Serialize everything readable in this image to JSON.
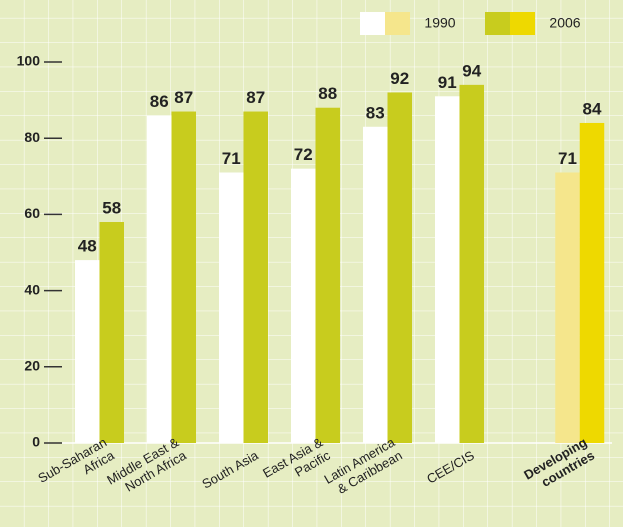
{
  "chart_data": {
    "type": "bar",
    "categories": [
      [
        "Sub-Saharan",
        "Africa"
      ],
      [
        "Middle East &",
        "North Africa"
      ],
      [
        "South Asia"
      ],
      [
        "East Asia &",
        "Pacific"
      ],
      [
        "Latin America",
        "& Caribbean"
      ],
      [
        "CEE/CIS"
      ],
      [
        "Developing",
        "countries"
      ]
    ],
    "highlight_category": 6,
    "series": [
      {
        "name": "1990",
        "color": "#ffffff",
        "highlight_color": "#f5e68c",
        "values": [
          48,
          86,
          71,
          72,
          83,
          91,
          71
        ]
      },
      {
        "name": "2006",
        "color": "#c8cc1e",
        "highlight_color": "#eed900",
        "values": [
          58,
          87,
          87,
          88,
          92,
          94,
          84
        ]
      }
    ],
    "ylim": [
      0,
      100
    ],
    "yticks": [
      0,
      20,
      40,
      60,
      80,
      100
    ]
  }
}
